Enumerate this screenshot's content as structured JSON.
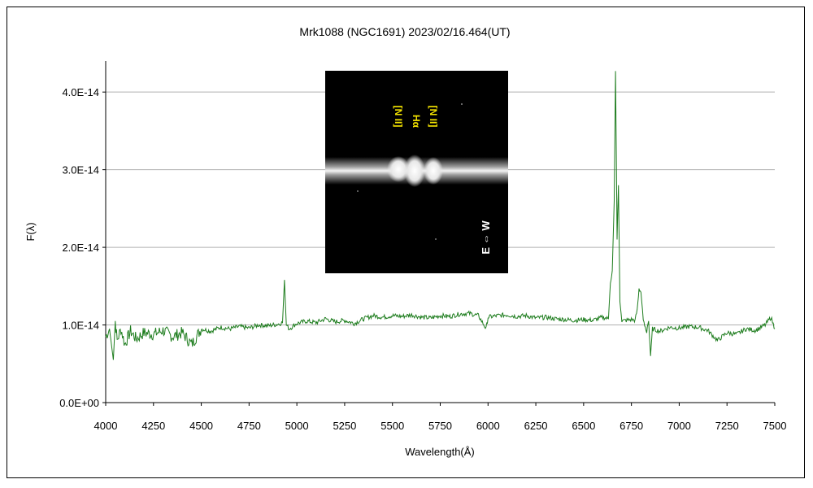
{
  "chart_data": {
    "type": "line",
    "title": "Mrk1088 (NGC1691)   2023/02/16.464(UT)",
    "xlabel": "Wavelength(Å)",
    "ylabel": "F(λ)",
    "xlim": [
      4000,
      7500
    ],
    "ylim": [
      0,
      4.4e-14
    ],
    "x_ticks": [
      4000,
      4250,
      4500,
      4750,
      5000,
      5250,
      5500,
      5750,
      6000,
      6250,
      6500,
      6750,
      7000,
      7250,
      7500
    ],
    "x_tick_labels": [
      "4000",
      "4250",
      "4500",
      "4750",
      "5000",
      "5250",
      "5500",
      "5750",
      "6000",
      "6250",
      "6500",
      "6750",
      "7000",
      "7250",
      "7500"
    ],
    "y_ticks": [
      0,
      1e-14,
      2e-14,
      3e-14,
      4e-14
    ],
    "y_tick_labels": [
      "0.0E+00",
      "1.0E-14",
      "2.0E-14",
      "3.0E-14",
      "4.0E-14"
    ],
    "grid": "horizontal",
    "series": [
      {
        "color": "#1e7d1e",
        "points": [
          [
            4000,
            8.5e-15
          ],
          [
            4020,
            9.5e-15
          ],
          [
            4040,
            5.5e-15
          ],
          [
            4050,
            1.05e-14
          ],
          [
            4060,
            8e-15
          ],
          [
            4080,
            9.5e-15
          ],
          [
            4100,
            7.5e-15
          ],
          [
            4130,
            9.2e-15
          ],
          [
            4160,
            8.2e-15
          ],
          [
            4200,
            9e-15
          ],
          [
            4250,
            8.8e-15
          ],
          [
            4300,
            9.3e-15
          ],
          [
            4350,
            8.5e-15
          ],
          [
            4400,
            9e-15
          ],
          [
            4450,
            7.5e-15
          ],
          [
            4500,
            9.5e-15
          ],
          [
            4550,
            9.2e-15
          ],
          [
            4600,
            9.7e-15
          ],
          [
            4650,
            9.5e-15
          ],
          [
            4700,
            9.8e-15
          ],
          [
            4750,
            9.6e-15
          ],
          [
            4800,
            1e-14
          ],
          [
            4850,
            9.9e-15
          ],
          [
            4900,
            1.01e-14
          ],
          [
            4925,
            1.03e-14
          ],
          [
            4935,
            1.58e-14
          ],
          [
            4945,
            1e-14
          ],
          [
            4960,
            9.5e-15
          ],
          [
            5000,
            1.02e-14
          ],
          [
            5050,
            1.05e-14
          ],
          [
            5100,
            1.03e-14
          ],
          [
            5150,
            1.08e-14
          ],
          [
            5200,
            1.04e-14
          ],
          [
            5250,
            1.06e-14
          ],
          [
            5300,
            1.02e-14
          ],
          [
            5350,
            1.08e-14
          ],
          [
            5400,
            1.12e-14
          ],
          [
            5450,
            1.1e-14
          ],
          [
            5500,
            1.12e-14
          ],
          [
            5550,
            1.11e-14
          ],
          [
            5600,
            1.13e-14
          ],
          [
            5650,
            1.1e-14
          ],
          [
            5700,
            1.09e-14
          ],
          [
            5750,
            1.12e-14
          ],
          [
            5800,
            1.11e-14
          ],
          [
            5850,
            1.14e-14
          ],
          [
            5900,
            1.15e-14
          ],
          [
            5950,
            1.12e-14
          ],
          [
            5990,
            9.5e-15
          ],
          [
            6000,
            1.1e-14
          ],
          [
            6050,
            1.12e-14
          ],
          [
            6100,
            1.13e-14
          ],
          [
            6150,
            1.11e-14
          ],
          [
            6200,
            1.12e-14
          ],
          [
            6250,
            1.09e-14
          ],
          [
            6300,
            1.1e-14
          ],
          [
            6350,
            1.08e-14
          ],
          [
            6400,
            1.07e-14
          ],
          [
            6450,
            1.06e-14
          ],
          [
            6500,
            1.07e-14
          ],
          [
            6550,
            1.06e-14
          ],
          [
            6600,
            1.1e-14
          ],
          [
            6630,
            1.08e-14
          ],
          [
            6640,
            1.55e-14
          ],
          [
            6650,
            1.7e-14
          ],
          [
            6660,
            2.6e-14
          ],
          [
            6667,
            4.27e-14
          ],
          [
            6675,
            2.1e-14
          ],
          [
            6682,
            2.8e-14
          ],
          [
            6690,
            1.3e-14
          ],
          [
            6700,
            1.05e-14
          ],
          [
            6750,
            1.07e-14
          ],
          [
            6770,
            1.06e-14
          ],
          [
            6780,
            1.2e-14
          ],
          [
            6790,
            1.45e-14
          ],
          [
            6800,
            1.42e-14
          ],
          [
            6812,
            1.08e-14
          ],
          [
            6830,
            9e-15
          ],
          [
            6840,
            1.05e-14
          ],
          [
            6850,
            6e-15
          ],
          [
            6860,
            9.5e-15
          ],
          [
            6900,
            9.2e-15
          ],
          [
            6950,
            9.7e-15
          ],
          [
            7000,
            9.6e-15
          ],
          [
            7050,
            9.8e-15
          ],
          [
            7100,
            9.7e-15
          ],
          [
            7150,
            9.3e-15
          ],
          [
            7200,
            8e-15
          ],
          [
            7250,
            9e-15
          ],
          [
            7300,
            8.8e-15
          ],
          [
            7350,
            9.5e-15
          ],
          [
            7400,
            9.3e-15
          ],
          [
            7450,
            1e-14
          ],
          [
            7480,
            1.1e-14
          ],
          [
            7500,
            9.5e-15
          ]
        ]
      }
    ],
    "inset": {
      "labels": [
        "[N II]",
        "Hα",
        "[N II]"
      ],
      "direction_label": "E ⇔ W"
    }
  }
}
